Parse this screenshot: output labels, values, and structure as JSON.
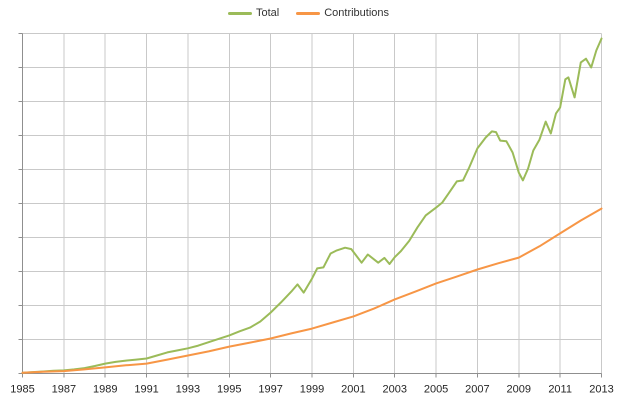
{
  "legend": {
    "items": [
      {
        "label": "Total",
        "color": "#9bbb59"
      },
      {
        "label": "Contributions",
        "color": "#f79646"
      }
    ]
  },
  "chart_data": {
    "type": "line",
    "title": "",
    "xlabel": "",
    "ylabel": "",
    "x_ticks": [
      "1985",
      "1987",
      "1989",
      "1991",
      "1993",
      "1995",
      "1997",
      "1999",
      "2001",
      "2003",
      "2005",
      "2007",
      "2009",
      "2011",
      "2013"
    ],
    "xlim": [
      1985,
      2013
    ],
    "ylim": [
      0,
      10
    ],
    "y_grid_step": 1,
    "y_tick_labels": [],
    "y_axis_note": "no y-axis labels shown; values in gridline divisions 0-10",
    "grid": true,
    "legend_position": "top-center",
    "colors": {
      "grid": "#c9c9c9",
      "axis": "#8f8f8f",
      "tick": "#8f8f8f",
      "label_text": "#262626"
    },
    "series": [
      {
        "name": "Total",
        "color": "#9bbb59",
        "points": [
          [
            1985,
            0.02
          ],
          [
            1985.5,
            0.04
          ],
          [
            1986,
            0.06
          ],
          [
            1986.5,
            0.08
          ],
          [
            1987,
            0.09
          ],
          [
            1987.5,
            0.12
          ],
          [
            1988,
            0.16
          ],
          [
            1988.5,
            0.22
          ],
          [
            1989,
            0.29
          ],
          [
            1989.5,
            0.34
          ],
          [
            1990,
            0.38
          ],
          [
            1990.5,
            0.41
          ],
          [
            1991,
            0.44
          ],
          [
            1991.5,
            0.53
          ],
          [
            1992,
            0.62
          ],
          [
            1992.5,
            0.68
          ],
          [
            1993,
            0.74
          ],
          [
            1993.5,
            0.82
          ],
          [
            1994,
            0.92
          ],
          [
            1994.5,
            1.02
          ],
          [
            1995,
            1.12
          ],
          [
            1995.5,
            1.24
          ],
          [
            1996,
            1.35
          ],
          [
            1996.5,
            1.53
          ],
          [
            1997,
            1.79
          ],
          [
            1997.5,
            2.09
          ],
          [
            1998,
            2.41
          ],
          [
            1998.3,
            2.62
          ],
          [
            1998.6,
            2.38
          ],
          [
            1999,
            2.79
          ],
          [
            1999.25,
            3.09
          ],
          [
            1999.55,
            3.12
          ],
          [
            1999.9,
            3.53
          ],
          [
            2000.2,
            3.62
          ],
          [
            2000.6,
            3.7
          ],
          [
            2000.9,
            3.66
          ],
          [
            2001.1,
            3.5
          ],
          [
            2001.4,
            3.26
          ],
          [
            2001.7,
            3.5
          ],
          [
            2002.2,
            3.26
          ],
          [
            2002.5,
            3.4
          ],
          [
            2002.75,
            3.22
          ],
          [
            2003,
            3.42
          ],
          [
            2003.3,
            3.6
          ],
          [
            2003.7,
            3.9
          ],
          [
            2004.1,
            4.3
          ],
          [
            2004.5,
            4.65
          ],
          [
            2005,
            4.88
          ],
          [
            2005.3,
            5.03
          ],
          [
            2005.6,
            5.29
          ],
          [
            2006,
            5.65
          ],
          [
            2006.3,
            5.68
          ],
          [
            2006.6,
            6.06
          ],
          [
            2007,
            6.62
          ],
          [
            2007.4,
            6.94
          ],
          [
            2007.7,
            7.12
          ],
          [
            2007.9,
            7.1
          ],
          [
            2008.1,
            6.85
          ],
          [
            2008.4,
            6.83
          ],
          [
            2008.7,
            6.5
          ],
          [
            2009,
            5.91
          ],
          [
            2009.2,
            5.68
          ],
          [
            2009.45,
            6.03
          ],
          [
            2009.7,
            6.56
          ],
          [
            2010,
            6.88
          ],
          [
            2010.3,
            7.41
          ],
          [
            2010.55,
            7.06
          ],
          [
            2010.8,
            7.65
          ],
          [
            2011,
            7.82
          ],
          [
            2011.25,
            8.65
          ],
          [
            2011.4,
            8.71
          ],
          [
            2011.7,
            8.12
          ],
          [
            2012,
            9.15
          ],
          [
            2012.25,
            9.26
          ],
          [
            2012.5,
            9.0
          ],
          [
            2012.75,
            9.5
          ],
          [
            2013,
            9.85
          ]
        ]
      },
      {
        "name": "Contributions",
        "color": "#f79646",
        "points": [
          [
            1985,
            0.02
          ],
          [
            1986,
            0.05
          ],
          [
            1987,
            0.07
          ],
          [
            1988,
            0.12
          ],
          [
            1989,
            0.18
          ],
          [
            1990,
            0.24
          ],
          [
            1991,
            0.29
          ],
          [
            1992,
            0.41
          ],
          [
            1993,
            0.53
          ],
          [
            1994,
            0.65
          ],
          [
            1995,
            0.79
          ],
          [
            1996,
            0.91
          ],
          [
            1997,
            1.03
          ],
          [
            1998,
            1.18
          ],
          [
            1999,
            1.32
          ],
          [
            2000,
            1.5
          ],
          [
            2001,
            1.68
          ],
          [
            2002,
            1.91
          ],
          [
            2003,
            2.18
          ],
          [
            2004,
            2.41
          ],
          [
            2005,
            2.65
          ],
          [
            2006,
            2.85
          ],
          [
            2007,
            3.06
          ],
          [
            2008,
            3.24
          ],
          [
            2009,
            3.41
          ],
          [
            2010,
            3.74
          ],
          [
            2011,
            4.12
          ],
          [
            2012,
            4.5
          ],
          [
            2013,
            4.85
          ]
        ]
      }
    ]
  }
}
